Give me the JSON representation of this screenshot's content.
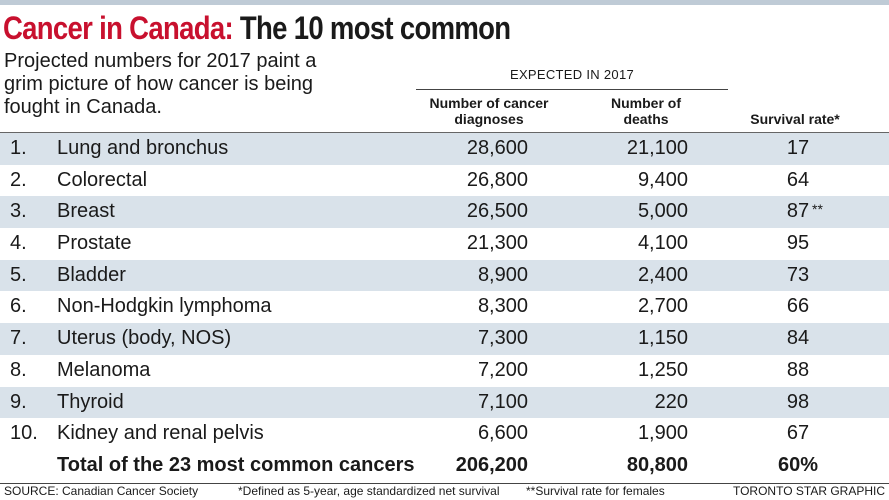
{
  "header": {
    "title_prefix": "Cancer in Canada:",
    "title_rest": "The 10 most common",
    "subtitle": "Projected numbers for 2017 paint a grim picture of how cancer is being fought in Canada."
  },
  "colors": {
    "accent": "#c8102e",
    "row_shade": "#d9e2ea",
    "top_bar": "#bfcbd6"
  },
  "chart_data": {
    "type": "table",
    "title": "Cancer in Canada: The 10 most common",
    "subtitle": "Projected numbers for 2017 paint a grim picture of how cancer is being fought in Canada.",
    "group_label": "EXPECTED IN 2017",
    "columns": [
      "Number of cancer diagnoses",
      "Number of deaths",
      "Survival rate*"
    ],
    "rows": [
      {
        "rank": "1.",
        "name": "Lung and bronchus",
        "diagnoses": "28,600",
        "deaths": "21,100",
        "survival": "17",
        "mark": ""
      },
      {
        "rank": "2.",
        "name": "Colorectal",
        "diagnoses": "26,800",
        "deaths": "9,400",
        "survival": "64",
        "mark": ""
      },
      {
        "rank": "3.",
        "name": "Breast",
        "diagnoses": "26,500",
        "deaths": "5,000",
        "survival": "87",
        "mark": "**"
      },
      {
        "rank": "4.",
        "name": "Prostate",
        "diagnoses": "21,300",
        "deaths": "4,100",
        "survival": "95",
        "mark": ""
      },
      {
        "rank": "5.",
        "name": "Bladder",
        "diagnoses": "8,900",
        "deaths": "2,400",
        "survival": "73",
        "mark": ""
      },
      {
        "rank": "6.",
        "name": "Non-Hodgkin lymphoma",
        "diagnoses": "8,300",
        "deaths": "2,700",
        "survival": "66",
        "mark": ""
      },
      {
        "rank": "7.",
        "name": "Uterus (body, NOS)",
        "diagnoses": "7,300",
        "deaths": "1,150",
        "survival": "84",
        "mark": ""
      },
      {
        "rank": "8.",
        "name": "Melanoma",
        "diagnoses": "7,200",
        "deaths": "1,250",
        "survival": "88",
        "mark": ""
      },
      {
        "rank": "9.",
        "name": "Thyroid",
        "diagnoses": "7,100",
        "deaths": "220",
        "survival": "98",
        "mark": ""
      },
      {
        "rank": "10.",
        "name": "Kidney and renal pelvis",
        "diagnoses": "6,600",
        "deaths": "1,900",
        "survival": "67",
        "mark": ""
      }
    ],
    "total": {
      "name": "Total of the 23 most common cancers",
      "diagnoses": "206,200",
      "deaths": "80,800",
      "survival": "60%"
    }
  },
  "footer": {
    "source": "SOURCE: Canadian Cancer Society",
    "note1": "*Defined as 5-year, age standardized net survival",
    "note2": "**Survival rate for females",
    "credit": "TORONTO STAR GRAPHIC"
  }
}
